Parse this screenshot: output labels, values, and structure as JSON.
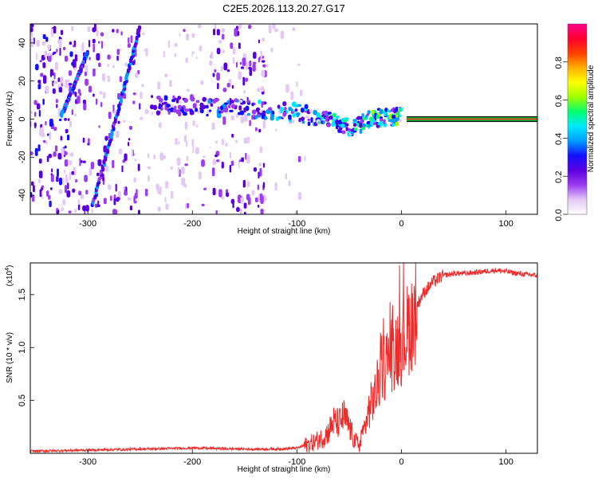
{
  "chart_data": [
    {
      "type": "heatmap",
      "title": "C2E5.2026.113.20.27.G17",
      "xlabel": "Height of straight line (km)",
      "ylabel": "Frequency (Hz)",
      "xlim": [
        -355,
        130
      ],
      "ylim": [
        -50,
        50
      ],
      "xticks": [
        -300,
        -200,
        -100,
        0,
        100
      ],
      "yticks": [
        -40,
        -20,
        0,
        20,
        40
      ],
      "colorbar": {
        "label": "Normalized spectral amplitude",
        "range": [
          0,
          1
        ],
        "ticks": [
          0.0,
          0.2,
          0.4,
          0.6,
          0.8
        ],
        "colormap": [
          "#ffffff",
          "#e4c8f6",
          "#9b3cf0",
          "#5a00e0",
          "#1410ff",
          "#009cff",
          "#00e8ff",
          "#00ff70",
          "#9cff00",
          "#ffff00",
          "#ffb000",
          "#ff4000",
          "#ff0030",
          "#ff0090"
        ]
      },
      "features": {
        "steady_line_frequency_hz": 0,
        "steady_line_from_km": 5,
        "steady_line_to_km": 130,
        "diagonal_traces": [
          {
            "x_start_km": -300,
            "y_start_hz": 35,
            "x_end_km": -325,
            "y_end_hz": 2
          },
          {
            "x_start_km": -295,
            "y_start_hz": -45,
            "x_end_km": -250,
            "y_end_hz": 48
          }
        ],
        "band_segments": [
          {
            "x": -240,
            "y": 8
          },
          {
            "x": -215,
            "y": 7
          },
          {
            "x": -190,
            "y": 6
          },
          {
            "x": -165,
            "y": 6
          },
          {
            "x": -140,
            "y": 5
          },
          {
            "x": -115,
            "y": 4
          },
          {
            "x": -95,
            "y": 3
          },
          {
            "x": -75,
            "y": 0
          },
          {
            "x": -60,
            "y": -2
          },
          {
            "x": -45,
            "y": -4
          },
          {
            "x": -32,
            "y": -1
          },
          {
            "x": -20,
            "y": 1
          },
          {
            "x": -8,
            "y": 1
          },
          {
            "x": 0,
            "y": 1
          }
        ]
      }
    },
    {
      "type": "line",
      "xlabel": "Height of straight line (km)",
      "ylabel": "SNR (10 * v/v)",
      "multiplier_label": "(x10",
      "multiplier_exp": "4",
      "xlim": [
        -355,
        130
      ],
      "ylim": [
        0,
        1.8
      ],
      "xticks": [
        -300,
        -200,
        -100,
        0,
        100
      ],
      "yticks": [
        0.5,
        1.0,
        1.5
      ],
      "ytick_labels": [
        "0.5",
        "1.0",
        "1.5"
      ],
      "color": "#ee2b2b",
      "series": [
        {
          "x": [
            -355,
            -300,
            -250,
            -200,
            -150,
            -120,
            -100,
            -85,
            -75,
            -70,
            -65,
            -60,
            -55,
            -50,
            -45,
            -40,
            -35,
            -30,
            -25,
            -20,
            -15,
            -10,
            -5,
            0,
            5,
            10,
            15,
            20,
            30,
            40,
            50,
            60,
            70,
            80,
            90,
            100,
            110,
            120,
            130
          ],
          "values": [
            0.02,
            0.03,
            0.04,
            0.05,
            0.04,
            0.04,
            0.05,
            0.1,
            0.15,
            0.2,
            0.3,
            0.28,
            0.35,
            0.25,
            0.12,
            0.08,
            0.25,
            0.45,
            0.55,
            0.75,
            0.85,
            0.95,
            1.0,
            1.05,
            1.15,
            1.25,
            1.4,
            1.5,
            1.62,
            1.68,
            1.7,
            1.7,
            1.71,
            1.72,
            1.73,
            1.72,
            1.7,
            1.69,
            1.68
          ]
        }
      ]
    }
  ]
}
